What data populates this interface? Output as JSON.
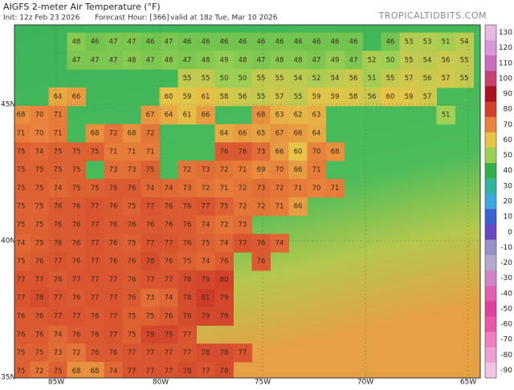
{
  "header": {
    "title": "AIGFS 2-meter Air Temperature (°F)",
    "init": "Init: 12z Feb 23 2026",
    "forecast_hour": "Forecast Hour: [366]",
    "valid": "valid at 18z Tue, Mar 10 2026",
    "site": "TROPICALTIDBITS.COM"
  },
  "map": {
    "longitude_labels": [
      "85W",
      "80W",
      "75W",
      "70W",
      "65W"
    ],
    "latitude_labels": [
      "45N",
      "40N",
      "35N"
    ],
    "temperature_grid": [
      [
        null,
        null,
        null,
        48,
        46,
        47,
        47,
        46,
        47,
        46,
        46,
        46,
        46,
        46,
        46,
        46,
        46,
        46,
        46,
        null,
        46,
        53,
        53,
        51,
        54
      ],
      [
        null,
        null,
        null,
        47,
        47,
        47,
        48,
        47,
        48,
        47,
        48,
        49,
        48,
        47,
        48,
        48,
        47,
        49,
        47,
        52,
        50,
        55,
        54,
        56,
        55
      ],
      [
        null,
        null,
        null,
        null,
        null,
        null,
        null,
        null,
        null,
        55,
        55,
        50,
        50,
        55,
        55,
        54,
        52,
        54,
        56,
        51,
        55,
        57,
        56,
        57,
        55
      ],
      [
        null,
        null,
        64,
        66,
        null,
        null,
        null,
        null,
        60,
        59,
        61,
        58,
        56,
        55,
        57,
        55,
        59,
        59,
        58,
        56,
        60,
        59,
        57,
        null,
        null
      ],
      [
        68,
        70,
        71,
        null,
        null,
        null,
        null,
        67,
        64,
        61,
        66,
        null,
        null,
        68,
        63,
        62,
        63,
        null,
        null,
        null,
        null,
        null,
        null,
        51,
        null
      ],
      [
        71,
        70,
        71,
        null,
        68,
        72,
        68,
        72,
        null,
        null,
        null,
        64,
        66,
        65,
        67,
        66,
        64,
        null,
        null,
        null,
        null,
        null,
        null,
        null,
        null
      ],
      [
        75,
        74,
        75,
        75,
        75,
        71,
        71,
        71,
        null,
        null,
        null,
        76,
        76,
        73,
        66,
        60,
        70,
        68,
        null,
        null,
        null,
        null,
        null,
        null,
        null
      ],
      [
        75,
        75,
        75,
        75,
        null,
        73,
        73,
        75,
        null,
        72,
        73,
        72,
        71,
        69,
        70,
        66,
        71,
        null,
        null,
        null,
        null,
        null,
        null,
        null,
        null
      ],
      [
        75,
        75,
        74,
        75,
        75,
        76,
        76,
        74,
        74,
        73,
        72,
        71,
        72,
        73,
        72,
        71,
        70,
        71,
        null,
        null,
        null,
        null,
        null,
        null,
        null
      ],
      [
        75,
        75,
        76,
        76,
        77,
        76,
        75,
        77,
        76,
        76,
        77,
        75,
        72,
        72,
        71,
        66,
        null,
        null,
        null,
        null,
        null,
        null,
        null,
        null,
        null
      ],
      [
        75,
        75,
        76,
        76,
        77,
        76,
        76,
        76,
        76,
        76,
        74,
        72,
        73,
        null,
        null,
        null,
        null,
        null,
        null,
        null,
        null,
        null,
        null,
        null,
        null
      ],
      [
        74,
        75,
        76,
        76,
        77,
        76,
        75,
        77,
        77,
        76,
        75,
        74,
        77,
        76,
        74,
        null,
        null,
        null,
        null,
        null,
        null,
        null,
        null,
        null,
        null
      ],
      [
        75,
        76,
        77,
        76,
        77,
        76,
        76,
        78,
        76,
        75,
        74,
        76,
        null,
        76,
        null,
        null,
        null,
        null,
        null,
        null,
        null,
        null,
        null,
        null,
        null
      ],
      [
        77,
        77,
        76,
        77,
        77,
        77,
        76,
        77,
        77,
        78,
        79,
        80,
        null,
        null,
        null,
        null,
        null,
        null,
        null,
        null,
        null,
        null,
        null,
        null,
        null
      ],
      [
        77,
        78,
        77,
        76,
        77,
        77,
        76,
        73,
        74,
        78,
        81,
        79,
        null,
        null,
        null,
        null,
        null,
        null,
        null,
        null,
        null,
        null,
        null,
        null,
        null
      ],
      [
        76,
        76,
        77,
        77,
        76,
        77,
        75,
        75,
        76,
        78,
        79,
        79,
        null,
        null,
        null,
        null,
        null,
        null,
        null,
        null,
        null,
        null,
        null,
        null,
        null
      ],
      [
        76,
        76,
        74,
        76,
        76,
        77,
        75,
        79,
        79,
        77,
        null,
        null,
        null,
        null,
        null,
        null,
        null,
        null,
        null,
        null,
        null,
        null,
        null,
        null,
        null
      ],
      [
        75,
        75,
        73,
        72,
        76,
        76,
        77,
        77,
        77,
        77,
        78,
        78,
        77,
        null,
        null,
        null,
        null,
        null,
        null,
        null,
        null,
        null,
        null,
        null,
        null
      ],
      [
        75,
        72,
        75,
        68,
        68,
        74,
        77,
        77,
        77,
        78,
        77,
        78,
        null,
        null,
        null,
        null,
        null,
        null,
        null,
        null,
        null,
        null,
        null,
        null,
        null
      ]
    ],
    "colorbar": {
      "ticks": [
        130,
        120,
        110,
        100,
        90,
        80,
        70,
        60,
        50,
        40,
        30,
        20,
        10,
        0,
        -10,
        -20,
        -30,
        -40,
        -50,
        -60,
        -70,
        -80,
        -90
      ],
      "colors": [
        "#e8b8e4",
        "#d898d4",
        "#cc6cbc",
        "#c84070",
        "#a8141e",
        "#d2402a",
        "#e8823c",
        "#e6c448",
        "#9cd054",
        "#34b04a",
        "#30b4a0",
        "#3ca8e0",
        "#3a62d0",
        "#6a48c0",
        "#9a90c8",
        "#b4a8cc",
        "#d282c4",
        "#e060b0",
        "#e2409e",
        "#e858a8",
        "#f07ec0",
        "#f0a0d0",
        "#f2c4e2"
      ]
    }
  }
}
